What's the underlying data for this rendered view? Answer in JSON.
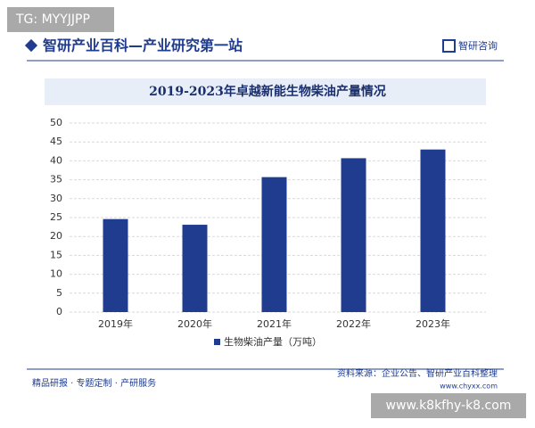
{
  "header": {
    "title": "智研产业百科—产业研究第一站",
    "logo": "智研咨询"
  },
  "chart_data": {
    "type": "bar",
    "title": "2019-2023年卓越新能生物柴油产量情况",
    "categories": [
      "2019年",
      "2020年",
      "2021年",
      "2022年",
      "2023年"
    ],
    "series": [
      {
        "name": "生物柴油产量（万吨）",
        "color": "#1f3c8f",
        "values": [
          24.6,
          23.1,
          35.7,
          40.7,
          43.0
        ]
      }
    ],
    "ylim": [
      0,
      50
    ],
    "yticks": [
      0,
      5,
      10,
      15,
      20,
      25,
      30,
      35,
      40,
      45,
      50
    ],
    "grid": true
  },
  "footer": {
    "source": "资料来源：企业公告、智研产业百科整理",
    "site": "www.chyxx.com",
    "services": "精品研报 · 专题定制 · 产研服务"
  },
  "overlays": [
    "TG: MYYJJPP",
    "www.k8kfhy-k8.com"
  ]
}
